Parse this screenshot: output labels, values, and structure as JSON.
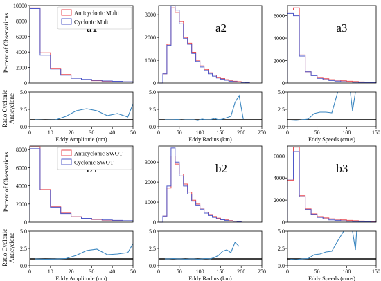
{
  "colors": {
    "anticyclonic": "#e8474f",
    "cyclonic": "#4f58c8",
    "ratio": "#3a86c0",
    "reference": "#000000"
  },
  "row_labels": {
    "percent": "Percent of Observations",
    "ratio_line1": "Ratio Cyclonic",
    "ratio_line2": "Anticyclone"
  },
  "chart_data": [
    {
      "id": "a1",
      "type": "step-histogram",
      "panel_label": "a1",
      "xlabel": "",
      "ylabel": "Percent of Observations",
      "xlim": [
        0,
        50
      ],
      "ylim": [
        0,
        10000
      ],
      "yticks": [
        "0",
        "2000",
        "4000",
        "6000",
        "8000",
        "10000"
      ],
      "legend": {
        "position": "top-right",
        "entries": [
          "Anticyclonic Multi",
          "Cyclonic Multi"
        ]
      },
      "bin_edges": [
        0,
        5,
        10,
        15,
        20,
        25,
        30,
        35,
        40,
        45,
        50
      ],
      "series": [
        {
          "name": "Anticyclonic Multi",
          "values": [
            9700,
            3900,
            1900,
            1100,
            650,
            420,
            300,
            230,
            180,
            140
          ]
        },
        {
          "name": "Cyclonic Multi",
          "values": [
            9600,
            3600,
            1800,
            1000,
            620,
            460,
            350,
            270,
            220,
            170
          ]
        }
      ]
    },
    {
      "id": "a1-ratio",
      "type": "line",
      "xlabel": "Eddy Amplitude (cm)",
      "xlim": [
        0,
        50
      ],
      "ylim": [
        0,
        5
      ],
      "yticks": [
        "0.0",
        "2.5",
        "5.0"
      ],
      "xticks": [
        "0",
        "10",
        "20",
        "30",
        "40",
        "50"
      ],
      "reference_line": 1,
      "x": [
        2.5,
        7.5,
        12.5,
        17.5,
        22.5,
        27.5,
        32.5,
        37.5,
        42.5,
        47.5,
        50
      ],
      "y": [
        1.0,
        0.95,
        0.98,
        1.5,
        2.3,
        2.6,
        2.3,
        1.6,
        1.9,
        1.4,
        3.3
      ]
    },
    {
      "id": "a2",
      "type": "step-histogram",
      "panel_label": "a2",
      "xlim": [
        0,
        250
      ],
      "ylim": [
        0,
        3400
      ],
      "yticks": [
        "0",
        "1000",
        "2000",
        "3000"
      ],
      "bin_edges": [
        0,
        10,
        20,
        30,
        40,
        50,
        60,
        70,
        80,
        90,
        100,
        110,
        120,
        130,
        140,
        150,
        160,
        170,
        180,
        190,
        200,
        210,
        220
      ],
      "series": [
        {
          "name": "Anticyclonic Multi",
          "values": [
            0,
            400,
            1700,
            3300,
            3100,
            2700,
            2000,
            1750,
            1350,
            1000,
            750,
            600,
            450,
            350,
            250,
            200,
            150,
            100,
            80,
            60,
            40,
            20
          ]
        },
        {
          "name": "Cyclonic Multi",
          "values": [
            0,
            400,
            1650,
            3400,
            3200,
            2600,
            1950,
            1700,
            1300,
            950,
            700,
            550,
            400,
            300,
            220,
            170,
            120,
            80,
            60,
            45,
            30,
            15
          ]
        }
      ]
    },
    {
      "id": "a2-ratio",
      "type": "line",
      "xlabel": "Eddy Radius (km)",
      "xlim": [
        0,
        250
      ],
      "ylim": [
        0,
        5
      ],
      "yticks": [
        "0.0",
        "2.5",
        "5.0"
      ],
      "xticks": [
        "0",
        "50",
        "100",
        "150",
        "200",
        "250"
      ],
      "reference_line": 1,
      "x": [
        15,
        25,
        35,
        45,
        55,
        65,
        75,
        85,
        95,
        105,
        115,
        125,
        135,
        145,
        155,
        165,
        175,
        185,
        195,
        205
      ],
      "y": [
        1.0,
        1.0,
        1.0,
        1.05,
        0.95,
        1.0,
        1.0,
        1.0,
        0.9,
        1.1,
        1.0,
        1.0,
        1.2,
        1.0,
        1.1,
        1.3,
        1.5,
        3.5,
        4.5,
        1.1
      ]
    },
    {
      "id": "a3",
      "type": "step-histogram",
      "panel_label": "a3",
      "xlim": [
        0,
        150
      ],
      "ylim": [
        0,
        6900
      ],
      "yticks": [
        "0",
        "2000",
        "4000",
        "6000"
      ],
      "bin_edges": [
        0,
        10,
        20,
        30,
        40,
        50,
        60,
        70,
        80,
        90,
        100,
        110,
        120,
        130,
        140,
        150
      ],
      "series": [
        {
          "name": "Anticyclonic Multi",
          "values": [
            6500,
            6700,
            2500,
            1000,
            700,
            500,
            380,
            300,
            250,
            200,
            160,
            130,
            100,
            80,
            60
          ]
        },
        {
          "name": "Cyclonic Multi",
          "values": [
            6200,
            6000,
            2400,
            1000,
            650,
            420,
            300,
            220,
            170,
            120,
            90,
            70,
            50,
            40,
            30
          ]
        }
      ]
    },
    {
      "id": "a3-ratio",
      "type": "line",
      "xlabel": "Eddy Speeds (cm/s)",
      "xlim": [
        0,
        150
      ],
      "ylim": [
        0,
        5
      ],
      "yticks": [
        "0.0",
        "2.5",
        "5.0"
      ],
      "xticks": [
        "0",
        "50",
        "100",
        "150"
      ],
      "reference_line": 1,
      "x": [
        5,
        15,
        25,
        35,
        45,
        55,
        65,
        75,
        85,
        95,
        105,
        110,
        115,
        120
      ],
      "y": [
        0.95,
        0.9,
        1.0,
        1.1,
        1.9,
        2.1,
        2.1,
        2.0,
        5.0,
        9.0,
        6.0,
        2.3,
        5.0,
        9.0
      ]
    },
    {
      "id": "b1",
      "type": "step-histogram",
      "panel_label": "b1",
      "xlabel": "",
      "ylabel": "Percent of Observations",
      "xlim": [
        0,
        50
      ],
      "ylim": [
        0,
        8400
      ],
      "yticks": [
        "0",
        "2000",
        "4000",
        "6000",
        "8000"
      ],
      "legend": {
        "position": "top-right",
        "entries": [
          "Anticyclonic SWOT",
          "Cyclonic SWOT"
        ]
      },
      "bin_edges": [
        0,
        5,
        10,
        15,
        20,
        25,
        30,
        35,
        40,
        45,
        50
      ],
      "series": [
        {
          "name": "Anticyclonic SWOT",
          "values": [
            8300,
            3600,
            1700,
            1000,
            600,
            400,
            300,
            220,
            170,
            130
          ]
        },
        {
          "name": "Cyclonic SWOT",
          "values": [
            8100,
            3550,
            1650,
            950,
            580,
            420,
            330,
            250,
            200,
            160
          ]
        }
      ]
    },
    {
      "id": "b1-ratio",
      "type": "line",
      "xlabel": "Eddy Amplitude (cm)",
      "xlim": [
        0,
        50
      ],
      "ylim": [
        0,
        5
      ],
      "yticks": [
        "0.0",
        "2.5",
        "5.0"
      ],
      "xticks": [
        "0",
        "10",
        "20",
        "30",
        "40",
        "50"
      ],
      "reference_line": 1,
      "x": [
        2.5,
        7.5,
        12.5,
        17.5,
        22.5,
        27.5,
        32.5,
        37.5,
        42.5,
        47.5,
        50
      ],
      "y": [
        1.0,
        0.95,
        0.98,
        1.05,
        1.5,
        2.2,
        2.4,
        1.6,
        1.7,
        1.9,
        3.2
      ]
    },
    {
      "id": "b2",
      "type": "step-histogram",
      "panel_label": "b2",
      "xlim": [
        0,
        250
      ],
      "ylim": [
        0,
        3800
      ],
      "yticks": [
        "0",
        "1000",
        "2000",
        "3000"
      ],
      "bin_edges": [
        0,
        10,
        20,
        30,
        40,
        50,
        60,
        70,
        80,
        90,
        100,
        110,
        120,
        130,
        140,
        150,
        160,
        170,
        180,
        190,
        200
      ],
      "series": [
        {
          "name": "Anticyclonic SWOT",
          "values": [
            0,
            300,
            1700,
            3300,
            2900,
            2400,
            1900,
            1500,
            1100,
            900,
            700,
            500,
            380,
            280,
            200,
            150,
            110,
            80,
            50,
            30
          ]
        },
        {
          "name": "Cyclonic SWOT",
          "values": [
            0,
            300,
            1800,
            3700,
            3000,
            2300,
            1800,
            1400,
            1050,
            850,
            650,
            450,
            330,
            240,
            170,
            120,
            90,
            60,
            40,
            20
          ]
        }
      ]
    },
    {
      "id": "b2-ratio",
      "type": "line",
      "xlabel": "Eddy Radius (km)",
      "xlim": [
        0,
        250
      ],
      "ylim": [
        0,
        5
      ],
      "yticks": [
        "0.0",
        "2.5",
        "5.0"
      ],
      "xticks": [
        "0",
        "50",
        "100",
        "150",
        "200",
        "250"
      ],
      "reference_line": 1,
      "x": [
        15,
        25,
        35,
        45,
        55,
        65,
        75,
        85,
        95,
        105,
        115,
        125,
        135,
        145,
        155,
        165,
        175,
        185,
        195
      ],
      "y": [
        1.0,
        1.0,
        1.05,
        1.0,
        1.0,
        0.95,
        1.0,
        1.0,
        0.95,
        1.0,
        1.05,
        1.0,
        1.2,
        1.5,
        2.1,
        2.3,
        1.9,
        3.4,
        2.8
      ]
    },
    {
      "id": "b3",
      "type": "step-histogram",
      "panel_label": "b3",
      "xlim": [
        0,
        150
      ],
      "ylim": [
        0,
        6900
      ],
      "yticks": [
        "0",
        "2000",
        "4000",
        "6000"
      ],
      "bin_edges": [
        0,
        10,
        20,
        30,
        40,
        50,
        60,
        70,
        80,
        90,
        100,
        110,
        120,
        130,
        140,
        150
      ],
      "series": [
        {
          "name": "Anticyclonic SWOT",
          "values": [
            3800,
            6800,
            2400,
            1200,
            750,
            500,
            380,
            300,
            250,
            200,
            160,
            130,
            100,
            80,
            60
          ]
        },
        {
          "name": "Cyclonic SWOT",
          "values": [
            3900,
            6400,
            2300,
            1150,
            700,
            430,
            300,
            210,
            160,
            120,
            80,
            60,
            40,
            30,
            20
          ]
        }
      ]
    },
    {
      "id": "b3-ratio",
      "type": "line",
      "xlabel": "Eddy Speeds (cm/s)",
      "xlim": [
        0,
        150
      ],
      "ylim": [
        0,
        5
      ],
      "yticks": [
        "0.0",
        "2.5",
        "5.0"
      ],
      "xticks": [
        "0",
        "50",
        "100",
        "150"
      ],
      "reference_line": 1,
      "x": [
        5,
        15,
        25,
        35,
        45,
        55,
        65,
        75,
        85,
        95,
        105,
        110,
        115,
        120
      ],
      "y": [
        0.95,
        0.9,
        1.0,
        1.05,
        1.6,
        1.7,
        2.0,
        2.1,
        3.6,
        5.0,
        9.0,
        5.0,
        2.3,
        9.0
      ]
    }
  ]
}
